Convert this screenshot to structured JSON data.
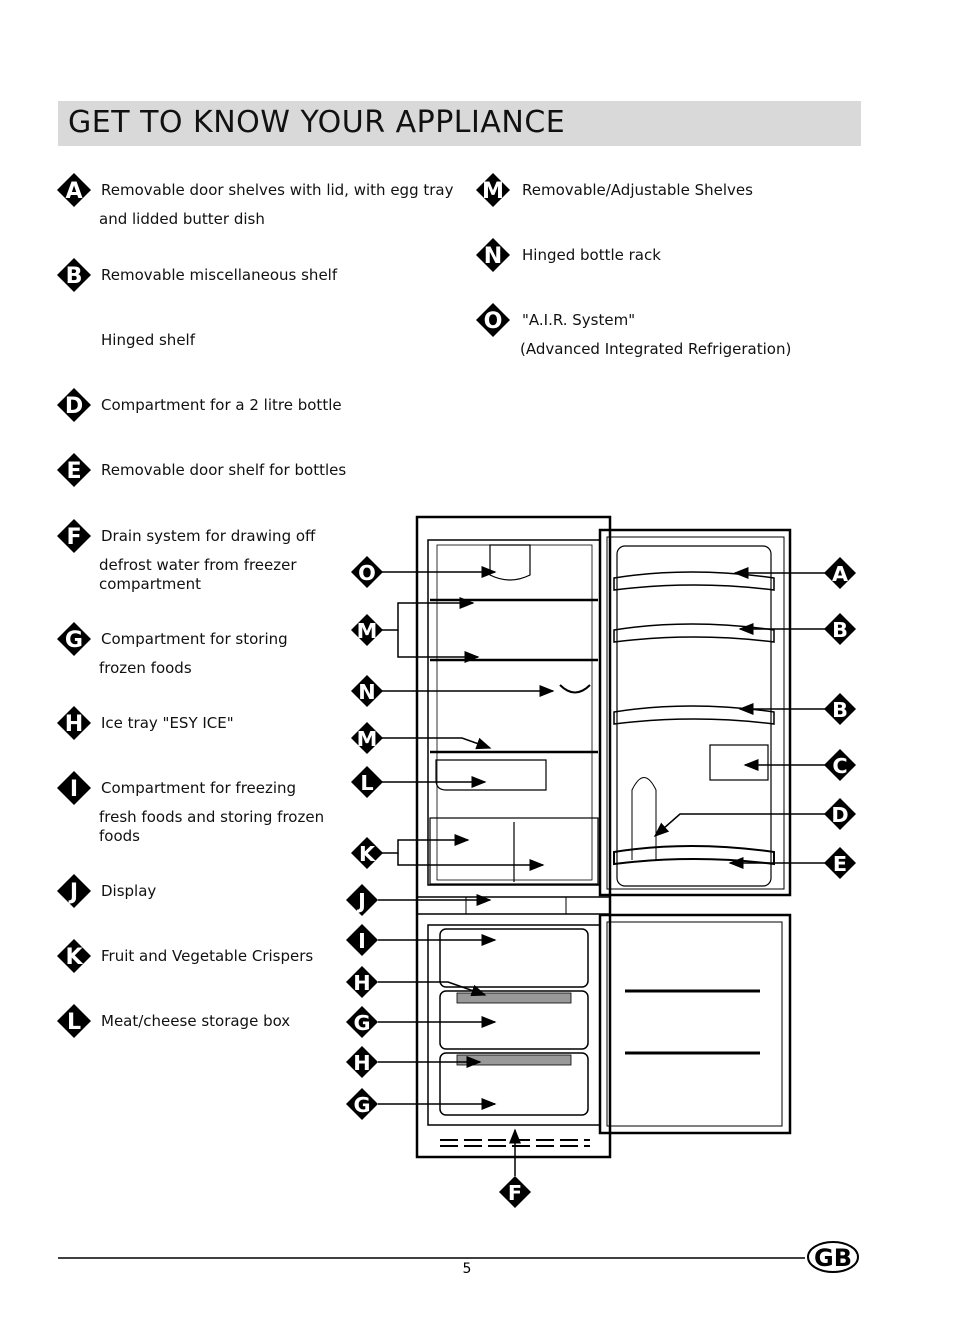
{
  "header": {
    "title": "GET TO KNOW YOUR APPLIANCE"
  },
  "items_left": [
    {
      "letter": "A",
      "lines": [
        "Removable door shelves with lid, with egg tray",
        "and lidded butter dish"
      ]
    },
    {
      "letter": "B",
      "lines": [
        "Removable miscellaneous shelf"
      ]
    },
    {
      "lines": [
        "Hinged shelf"
      ]
    },
    {
      "letter": "D",
      "lines": [
        "Compartment for a 2 litre bottle"
      ]
    },
    {
      "letter": "E",
      "lines": [
        "Removable door shelf for bottles"
      ]
    },
    {
      "letter": "F",
      "lines": [
        "Drain system for drawing off",
        "defrost water from freezer",
        "compartment"
      ]
    },
    {
      "letter": "G",
      "lines": [
        "Compartment for storing",
        "frozen foods"
      ]
    },
    {
      "letter": "H",
      "lines": [
        "Ice tray \"ESY ICE\""
      ]
    },
    {
      "letter": "I",
      "lines": [
        "Compartment for freezing",
        "fresh foods and storing frozen",
        "foods"
      ]
    },
    {
      "letter": "J",
      "lines": [
        "Display"
      ]
    },
    {
      "letter": "K",
      "lines": [
        "Fruit and Vegetable Crispers"
      ]
    },
    {
      "letter": "L",
      "lines": [
        "Meat/cheese storage box"
      ]
    }
  ],
  "items_right": [
    {
      "letter": "M",
      "lines": [
        "Removable/Adjustable Shelves"
      ]
    },
    {
      "letter": "N",
      "lines": [
        "Hinged bottle rack"
      ]
    },
    {
      "letter": "O",
      "lines": [
        "\"A.I.R. System\"",
        "(Advanced Integrated Refrigeration)"
      ]
    }
  ],
  "diagram": {
    "left_callouts": [
      "O",
      "M",
      "N",
      "M",
      "L",
      "K",
      "J",
      "I",
      "H",
      "G",
      "H",
      "G"
    ],
    "bottom_callout": "F",
    "right_callouts": [
      "A",
      "B",
      "B",
      "C",
      "D",
      "E"
    ]
  },
  "footer": {
    "page": "5",
    "badge": "GB"
  }
}
